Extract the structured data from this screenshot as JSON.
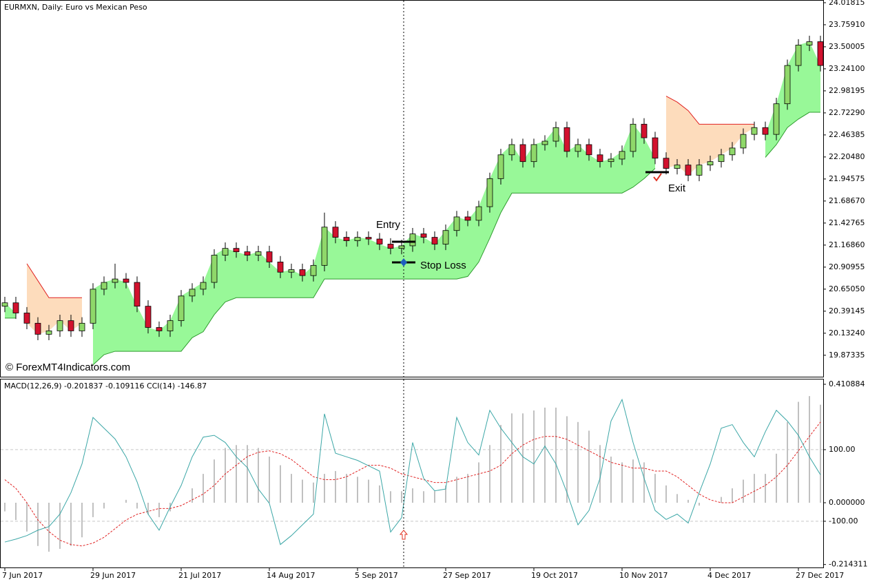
{
  "chart_data": [
    {
      "type": "candlestick",
      "title": "EURMXN, Daily:  Euro vs Mexican Peso",
      "watermark": "© ForexMT4Indicators.com",
      "annotations": [
        "Entry",
        "Stop Loss",
        "Exit"
      ],
      "categories": [
        "7 Jun 2017",
        null,
        null,
        null,
        null,
        null,
        null,
        null,
        "29 Jun 2017",
        null,
        null,
        null,
        null,
        null,
        null,
        null,
        "21 Jul 2017",
        null,
        null,
        null,
        null,
        null,
        null,
        null,
        "14 Aug 2017",
        null,
        null,
        null,
        null,
        null,
        null,
        null,
        "5 Sep 2017",
        null,
        null,
        null,
        null,
        null,
        null,
        null,
        "27 Sep 2017",
        null,
        null,
        null,
        null,
        null,
        null,
        null,
        "19 Oct 2017",
        null,
        null,
        null,
        null,
        null,
        null,
        null,
        "10 Nov 2017",
        null,
        null,
        null,
        null,
        null,
        null,
        null,
        "4 Dec 2017",
        null,
        null,
        null,
        null,
        null,
        null,
        null,
        "27 Dec 2017",
        null,
        null
      ],
      "open": [
        20.45,
        20.49,
        20.37,
        20.25,
        20.12,
        20.16,
        20.28,
        20.16,
        20.25,
        20.65,
        20.73,
        20.77,
        20.73,
        20.45,
        20.2,
        20.16,
        20.28,
        20.57,
        20.65,
        20.73,
        21.05,
        21.13,
        21.09,
        21.05,
        21.09,
        20.97,
        20.85,
        20.88,
        20.81,
        20.93,
        21.38,
        21.26,
        21.22,
        21.26,
        21.24,
        21.18,
        21.13,
        21.16,
        21.3,
        21.26,
        21.18,
        21.34,
        21.5,
        21.46,
        21.62,
        21.95,
        22.23,
        22.35,
        22.15,
        22.35,
        22.39,
        22.55,
        22.27,
        22.35,
        22.23,
        22.15,
        22.18,
        22.27,
        22.59,
        22.43,
        22.19,
        22.07,
        22.11,
        21.99,
        22.11,
        22.15,
        22.23,
        22.31,
        22.47,
        22.55,
        22.47,
        22.83,
        23.28,
        23.52,
        23.56
      ],
      "high": [
        20.56,
        20.56,
        20.44,
        20.32,
        20.23,
        20.35,
        20.35,
        20.32,
        20.72,
        20.8,
        20.95,
        20.84,
        20.8,
        20.52,
        20.27,
        20.35,
        20.64,
        20.72,
        20.8,
        21.12,
        21.2,
        21.2,
        21.16,
        21.16,
        21.16,
        21.04,
        20.95,
        20.95,
        21.0,
        21.55,
        21.45,
        21.33,
        21.33,
        21.33,
        21.31,
        21.25,
        21.23,
        21.37,
        21.37,
        21.33,
        21.41,
        21.57,
        21.57,
        21.69,
        22.02,
        22.3,
        22.42,
        22.42,
        22.42,
        22.46,
        22.62,
        22.62,
        22.42,
        22.42,
        22.3,
        22.25,
        22.34,
        22.66,
        22.66,
        22.5,
        22.26,
        22.18,
        22.18,
        22.18,
        22.22,
        22.3,
        22.38,
        22.54,
        22.62,
        22.62,
        22.9,
        23.35,
        23.59,
        23.63,
        23.63
      ],
      "low": [
        20.38,
        20.3,
        20.18,
        20.05,
        20.05,
        20.09,
        20.09,
        20.09,
        20.18,
        20.58,
        20.66,
        20.66,
        20.38,
        20.13,
        20.09,
        20.09,
        20.21,
        20.5,
        20.58,
        20.66,
        20.98,
        21.02,
        20.98,
        20.98,
        20.9,
        20.78,
        20.78,
        20.74,
        20.74,
        20.86,
        21.19,
        21.15,
        21.15,
        21.17,
        21.11,
        21.06,
        21.06,
        21.09,
        21.19,
        21.11,
        21.11,
        21.27,
        21.39,
        21.39,
        21.55,
        21.88,
        22.16,
        22.08,
        22.08,
        22.28,
        22.32,
        22.2,
        22.2,
        22.16,
        22.08,
        22.08,
        22.11,
        22.2,
        22.36,
        22.12,
        22.0,
        22.0,
        21.92,
        21.92,
        22.04,
        22.08,
        22.16,
        22.24,
        22.4,
        22.4,
        22.4,
        22.76,
        23.21,
        23.45,
        23.21
      ],
      "close": [
        20.49,
        20.37,
        20.25,
        20.12,
        20.16,
        20.28,
        20.16,
        20.25,
        20.65,
        20.73,
        20.77,
        20.73,
        20.45,
        20.2,
        20.16,
        20.28,
        20.57,
        20.65,
        20.73,
        21.05,
        21.13,
        21.09,
        21.05,
        21.09,
        20.97,
        20.85,
        20.88,
        20.81,
        20.93,
        21.38,
        21.26,
        21.22,
        21.26,
        21.24,
        21.18,
        21.13,
        21.16,
        21.3,
        21.26,
        21.18,
        21.34,
        21.5,
        21.46,
        21.62,
        21.95,
        22.23,
        22.35,
        22.15,
        22.35,
        22.39,
        22.55,
        22.27,
        22.35,
        22.23,
        22.15,
        22.18,
        22.27,
        22.59,
        22.43,
        22.19,
        22.07,
        22.11,
        21.99,
        22.11,
        22.15,
        22.23,
        22.31,
        22.47,
        22.55,
        22.47,
        22.83,
        23.28,
        23.52,
        23.56,
        23.28
      ],
      "up_color": "#8fd86a",
      "down_color": "#d2122e",
      "support": {
        "color": "#2e9b2e",
        "fill": "#98f898",
        "values": [
          20.31,
          20.31,
          null,
          null,
          null,
          null,
          null,
          null,
          19.76,
          19.88,
          19.92,
          19.92,
          19.92,
          19.92,
          19.92,
          19.92,
          19.92,
          20.08,
          20.15,
          20.35,
          20.5,
          20.55,
          20.55,
          20.55,
          20.55,
          20.55,
          20.55,
          20.55,
          20.55,
          20.77,
          20.77,
          20.77,
          20.77,
          20.77,
          20.77,
          20.77,
          20.77,
          20.77,
          20.77,
          20.77,
          20.77,
          20.77,
          20.8,
          20.97,
          21.25,
          21.55,
          21.78,
          21.78,
          21.78,
          21.78,
          21.78,
          21.78,
          21.78,
          21.78,
          21.78,
          21.78,
          21.78,
          21.85,
          21.95,
          22.07,
          null,
          null,
          null,
          null,
          null,
          null,
          null,
          null,
          null,
          22.2,
          22.35,
          22.55,
          22.65,
          22.73,
          22.73
        ]
      },
      "resistance": {
        "color": "#e02020",
        "fill": "#fddcbc",
        "values": [
          null,
          null,
          20.95,
          20.75,
          20.55,
          20.55,
          20.55,
          20.55,
          null,
          null,
          null,
          null,
          null,
          null,
          null,
          null,
          null,
          null,
          null,
          null,
          null,
          null,
          null,
          null,
          null,
          null,
          null,
          null,
          null,
          null,
          null,
          null,
          null,
          null,
          null,
          null,
          null,
          null,
          null,
          null,
          null,
          null,
          null,
          null,
          null,
          null,
          null,
          null,
          null,
          null,
          null,
          null,
          null,
          null,
          null,
          null,
          null,
          null,
          null,
          null,
          22.92,
          22.85,
          22.75,
          22.59,
          22.59,
          22.59,
          22.59,
          22.59,
          22.59,
          null,
          null,
          null,
          null,
          null,
          null
        ]
      },
      "ylim": [
        19.613,
        24.05
      ],
      "yticks": [
        24.01815,
        {
          "value": 23.7591,
          "label": "23.75910"
        },
        23.50005,
        {
          "value": 23.241,
          "label": "23.24100"
        },
        22.98195,
        {
          "value": 22.7229,
          "label": "22.72290"
        },
        22.46385,
        {
          "value": 22.2048,
          "label": "22.20480"
        },
        21.94575,
        {
          "value": 21.6867,
          "label": "21.68670"
        },
        21.42765,
        {
          "value": 21.1686,
          "label": "21.16860"
        },
        20.90955,
        {
          "value": 20.6505,
          "label": "20.65050"
        },
        20.39145,
        {
          "value": 20.1324,
          "label": "20.13240"
        },
        19.87335
      ]
    },
    {
      "type": "indicator",
      "title": "MACD(12,26,9) -0.201837 -0.109116 CCI(14) -146.87",
      "series": [
        {
          "color": "#c0c0c0",
          "values": [
            -0.03,
            -0.06,
            -0.1,
            -0.15,
            -0.17,
            -0.16,
            -0.15,
            -0.12,
            -0.05,
            -0.02,
            0.0,
            0.01,
            -0.02,
            -0.04,
            -0.05,
            -0.03,
            0.0,
            0.05,
            0.1,
            0.15,
            0.19,
            0.2,
            0.2,
            0.19,
            0.16,
            0.13,
            0.1,
            0.08,
            0.07,
            0.1,
            0.11,
            0.1,
            0.09,
            0.08,
            0.06,
            0.04,
            0.04,
            0.05,
            0.04,
            0.04,
            0.06,
            0.09,
            0.1,
            0.14,
            0.2,
            0.27,
            0.31,
            0.31,
            0.32,
            0.33,
            0.33,
            0.3,
            0.28,
            0.25,
            0.2,
            0.16,
            0.14,
            0.15,
            0.14,
            0.1,
            0.06,
            0.03,
            0.01,
            -0.01,
            0.0,
            0.02,
            0.05,
            0.08,
            0.1,
            0.1,
            0.17,
            0.28,
            0.35,
            0.37,
            0.34
          ]
        },
        {
          "color": "#e02020",
          "values": [
            0.08,
            0.05,
            0.0,
            -0.06,
            -0.1,
            -0.13,
            -0.145,
            -0.15,
            -0.14,
            -0.12,
            -0.09,
            -0.06,
            -0.04,
            -0.03,
            -0.02,
            -0.02,
            -0.01,
            0.01,
            0.03,
            0.06,
            0.1,
            0.13,
            0.16,
            0.175,
            0.18,
            0.17,
            0.15,
            0.12,
            0.09,
            0.08,
            0.08,
            0.09,
            0.11,
            0.13,
            0.13,
            0.12,
            0.1,
            0.09,
            0.08,
            0.07,
            0.07,
            0.08,
            0.09,
            0.1,
            0.11,
            0.13,
            0.17,
            0.2,
            0.22,
            0.23,
            0.23,
            0.22,
            0.2,
            0.18,
            0.16,
            0.14,
            0.13,
            0.12,
            0.12,
            0.11,
            0.11,
            0.09,
            0.06,
            0.03,
            0.01,
            0.0,
            0.0,
            0.02,
            0.04,
            0.06,
            0.09,
            0.13,
            0.18,
            0.23,
            0.28
          ]
        },
        {
          "color": "#3aa6a6",
          "axis": "y2",
          "values": [
            -158,
            -150,
            -140,
            -125,
            -115,
            -80,
            -20,
            60,
            190,
            160,
            130,
            80,
            10,
            -80,
            -125,
            -60,
            0,
            80,
            135,
            140,
            120,
            80,
            50,
            -10,
            -50,
            -165,
            -140,
            -110,
            -80,
            200,
            90,
            80,
            70,
            55,
            40,
            -130,
            -90,
            120,
            20,
            -15,
            -10,
            190,
            120,
            85,
            210,
            160,
            120,
            80,
            60,
            110,
            60,
            -20,
            -110,
            -70,
            20,
            180,
            240,
            120,
            20,
            -70,
            -95,
            -80,
            -105,
            -20,
            60,
            160,
            170,
            120,
            80,
            150,
            210,
            180,
            140,
            80,
            30
          ]
        }
      ],
      "ylim": [
        -0.227,
        0.43
      ],
      "yticks": [
        0.410884,
        {
          "value": 0,
          "label": "0.000000"
        },
        -0.214311
      ],
      "y2lim": [
        -231,
        298
      ],
      "y2ticks": [
        {
          "value": 100,
          "label": "100.00"
        },
        {
          "value": -100,
          "label": "-100.00"
        }
      ]
    }
  ]
}
